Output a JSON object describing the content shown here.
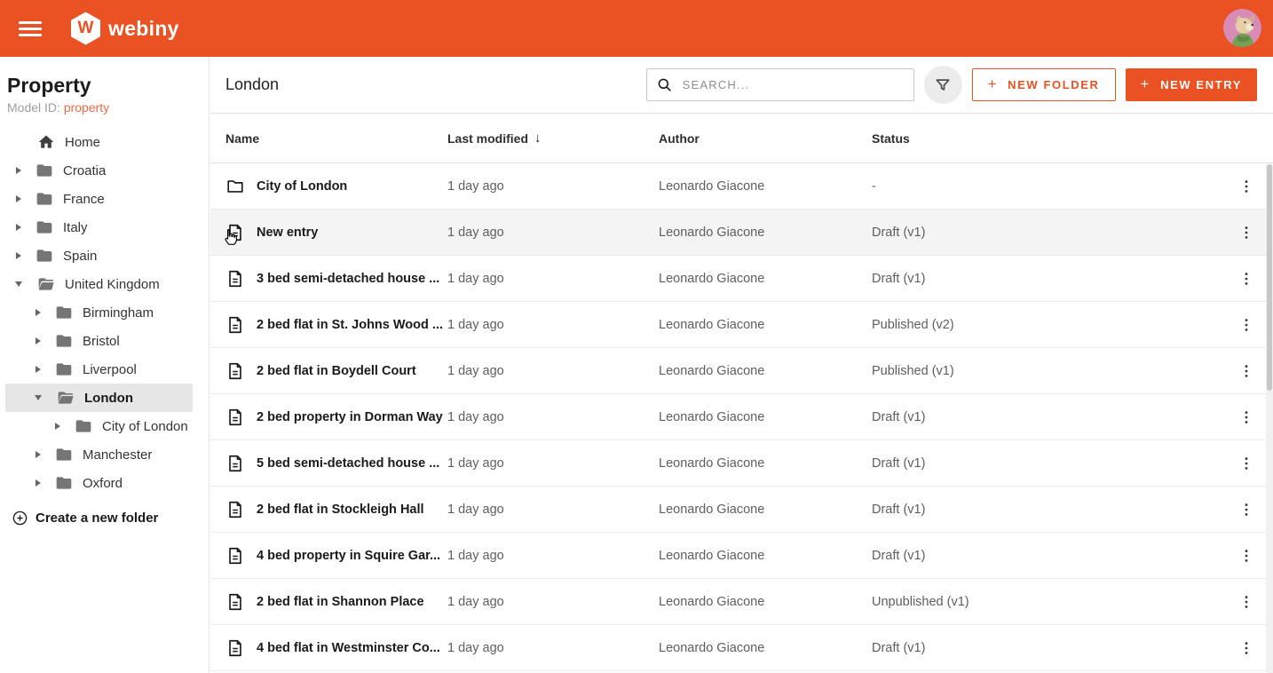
{
  "colors": {
    "primary": "#ea5123",
    "header_bg": "#ea5123",
    "tree_selected_bg": "#e6e6e6",
    "row_highlight_bg": "#f4f4f4"
  },
  "header": {
    "menu_icon": "hamburger-icon",
    "logo_hex_letter": "W",
    "logo_text": "webiny",
    "avatar": "user-avatar"
  },
  "sidebar": {
    "title": "Property",
    "model_id_label": "Model ID:",
    "model_id_value": "property",
    "create_folder_label": "Create a new folder",
    "tree": [
      {
        "label": "Home",
        "level": 0,
        "icon": "home",
        "caret": "none",
        "selected": false
      },
      {
        "label": "Croatia",
        "level": 0,
        "icon": "folder-closed",
        "caret": "right",
        "selected": false
      },
      {
        "label": "France",
        "level": 0,
        "icon": "folder-closed",
        "caret": "right",
        "selected": false
      },
      {
        "label": "Italy",
        "level": 0,
        "icon": "folder-closed",
        "caret": "right",
        "selected": false
      },
      {
        "label": "Spain",
        "level": 0,
        "icon": "folder-closed",
        "caret": "right",
        "selected": false
      },
      {
        "label": "United Kingdom",
        "level": 0,
        "icon": "folder-open",
        "caret": "down",
        "selected": false
      },
      {
        "label": "Birmingham",
        "level": 1,
        "icon": "folder-closed",
        "caret": "right",
        "selected": false
      },
      {
        "label": "Bristol",
        "level": 1,
        "icon": "folder-closed",
        "caret": "right",
        "selected": false
      },
      {
        "label": "Liverpool",
        "level": 1,
        "icon": "folder-closed",
        "caret": "right",
        "selected": false
      },
      {
        "label": "London",
        "level": 1,
        "icon": "folder-open",
        "caret": "down",
        "selected": true
      },
      {
        "label": "City of London",
        "level": 2,
        "icon": "folder-closed",
        "caret": "right",
        "selected": false
      },
      {
        "label": "Manchester",
        "level": 1,
        "icon": "folder-closed",
        "caret": "right",
        "selected": false
      },
      {
        "label": "Oxford",
        "level": 1,
        "icon": "folder-closed",
        "caret": "right",
        "selected": false
      }
    ]
  },
  "toolbar": {
    "title": "London",
    "search_placeholder": "SEARCH...",
    "filter_icon": "funnel-icon",
    "plus_glyph": "+",
    "new_folder_label": "NEW FOLDER",
    "new_entry_label": "NEW ENTRY"
  },
  "table": {
    "columns": {
      "name": "Name",
      "modified": "Last modified",
      "author": "Author",
      "status": "Status"
    },
    "sorted_by": "Last modified",
    "sort_direction": "desc",
    "sort_arrow": "↓",
    "rows": [
      {
        "type": "folder",
        "name": "City of London",
        "modified": "1 day ago",
        "author": "Leonardo Giacone",
        "status": "-",
        "highlighted": false,
        "cursor": false
      },
      {
        "type": "entry",
        "name": "New entry",
        "modified": "1 day ago",
        "author": "Leonardo Giacone",
        "status": "Draft (v1)",
        "highlighted": true,
        "cursor": true
      },
      {
        "type": "entry",
        "name": "3 bed semi-detached house ...",
        "modified": "1 day ago",
        "author": "Leonardo Giacone",
        "status": "Draft (v1)",
        "highlighted": false,
        "cursor": false
      },
      {
        "type": "entry",
        "name": "2 bed flat in St. Johns Wood ...",
        "modified": "1 day ago",
        "author": "Leonardo Giacone",
        "status": "Published (v2)",
        "highlighted": false,
        "cursor": false
      },
      {
        "type": "entry",
        "name": "2 bed flat in Boydell Court",
        "modified": "1 day ago",
        "author": "Leonardo Giacone",
        "status": "Published (v1)",
        "highlighted": false,
        "cursor": false
      },
      {
        "type": "entry",
        "name": "2 bed property in Dorman Way",
        "modified": "1 day ago",
        "author": "Leonardo Giacone",
        "status": "Draft (v1)",
        "highlighted": false,
        "cursor": false
      },
      {
        "type": "entry",
        "name": "5 bed semi-detached house ...",
        "modified": "1 day ago",
        "author": "Leonardo Giacone",
        "status": "Draft (v1)",
        "highlighted": false,
        "cursor": false
      },
      {
        "type": "entry",
        "name": "2 bed flat in Stockleigh Hall",
        "modified": "1 day ago",
        "author": "Leonardo Giacone",
        "status": "Draft (v1)",
        "highlighted": false,
        "cursor": false
      },
      {
        "type": "entry",
        "name": "4 bed property in Squire Gar...",
        "modified": "1 day ago",
        "author": "Leonardo Giacone",
        "status": "Draft (v1)",
        "highlighted": false,
        "cursor": false
      },
      {
        "type": "entry",
        "name": "2 bed flat in Shannon Place",
        "modified": "1 day ago",
        "author": "Leonardo Giacone",
        "status": "Unpublished (v1)",
        "highlighted": false,
        "cursor": false
      },
      {
        "type": "entry",
        "name": "4 bed flat in Westminster Co...",
        "modified": "1 day ago",
        "author": "Leonardo Giacone",
        "status": "Draft (v1)",
        "highlighted": false,
        "cursor": false
      }
    ]
  }
}
